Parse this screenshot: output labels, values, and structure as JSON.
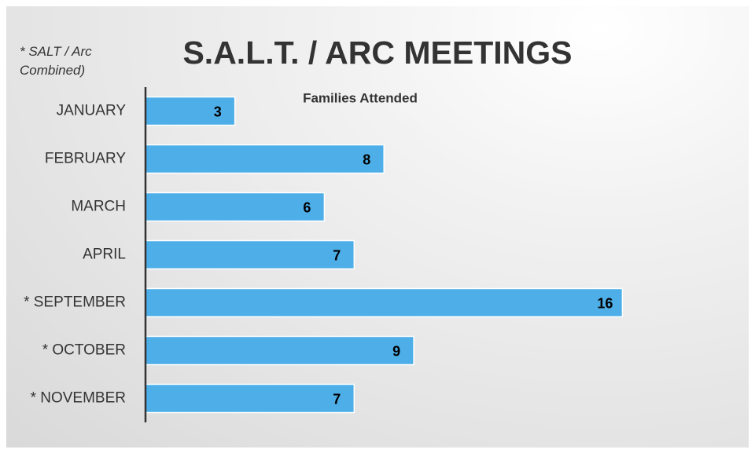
{
  "chart_data": {
    "type": "bar",
    "orientation": "horizontal",
    "title": "S.A.L.T. / ARC MEETINGS",
    "subtitle": "Families Attended",
    "note": "* SALT / Arc Combined)",
    "categories": [
      "JANUARY",
      "FEBRUARY",
      "MARCH",
      "APRIL",
      "* SEPTEMBER",
      "* OCTOBER",
      "* NOVEMBER"
    ],
    "values": [
      3,
      8,
      6,
      7,
      16,
      9,
      7
    ],
    "color": "#4daee8",
    "xlim": [
      0,
      20
    ]
  }
}
